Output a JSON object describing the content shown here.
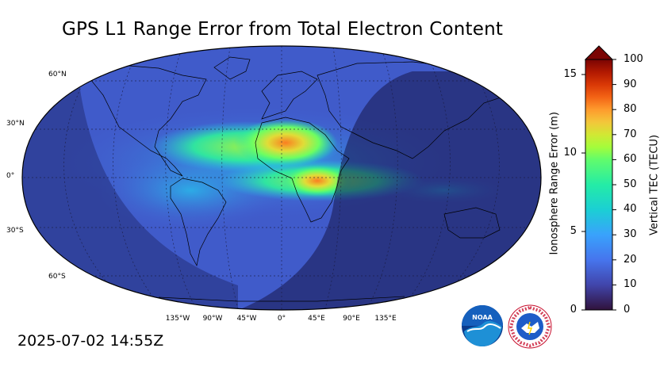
{
  "title": "GPS L1 Range Error from Total Electron Content",
  "timestamp": "2025-07-02 14:55Z",
  "map": {
    "projection": "robinson",
    "lat_labels": [
      "60°N",
      "30°N",
      "0°",
      "30°S",
      "60°S"
    ],
    "lon_labels": [
      "135°W",
      "90°W",
      "45°W",
      "0°",
      "45°E",
      "90°E",
      "135°E"
    ],
    "night_shading": true
  },
  "colorbar": {
    "left_label": "Ionosphere Range Error (m)",
    "right_label": "Vertical TEC (TECU)",
    "left_ticks": [
      "0",
      "5",
      "10",
      "15"
    ],
    "right_ticks": [
      "0",
      "10",
      "20",
      "30",
      "40",
      "50",
      "60",
      "70",
      "80",
      "90",
      "100"
    ],
    "range_tecu": [
      0,
      100
    ],
    "extend": "max",
    "colormap": "turbo"
  },
  "logos": {
    "noaa_text": "NOAA",
    "nws_text": "NATIONAL WEATHER SERVICE"
  },
  "colors": {
    "low": "#30123b",
    "mid_low": "#4662d7",
    "mid": "#1ae4b6",
    "mid_high": "#a4fc3c",
    "high": "#fb7e21",
    "max": "#7a0403"
  }
}
